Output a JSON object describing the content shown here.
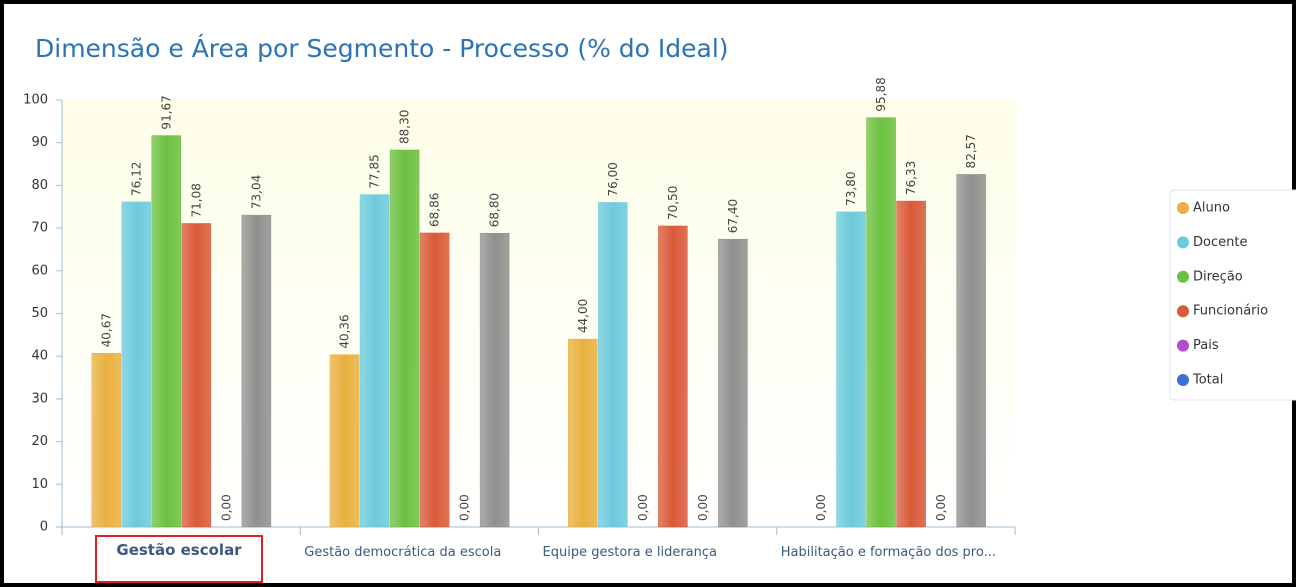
{
  "chart_data": {
    "type": "bar",
    "title": "Dimensão e Área por Segmento - Processo (% do Ideal)",
    "categories": [
      "Gestão escolar",
      "Gestão democrática da escola",
      "Equipe gestora e liderança",
      "Habilitação e formação dos pro..."
    ],
    "selected_category": 0,
    "series": [
      {
        "name": "Aluno",
        "color": "#e8b040",
        "legend_color": "#e8b040",
        "values": [
          40.67,
          40.36,
          44.0,
          0.0
        ],
        "value_labels": [
          "40,67",
          "40,36",
          "44,00",
          "0,00"
        ]
      },
      {
        "name": "Docente",
        "color": "#6ccadc",
        "legend_color": "#6ccadc",
        "values": [
          76.12,
          77.85,
          76.0,
          73.8
        ],
        "value_labels": [
          "76,12",
          "77,85",
          "76,00",
          "73,80"
        ]
      },
      {
        "name": "Direção",
        "color": "#6cc040",
        "legend_color": "#6cc040",
        "values": [
          91.67,
          88.3,
          0.0,
          95.88
        ],
        "value_labels": [
          "91,67",
          "88,30",
          "0,00",
          "95,88"
        ]
      },
      {
        "name": "Funcionário",
        "color": "#d85a38",
        "legend_color": "#d85a38",
        "values": [
          71.08,
          68.86,
          70.5,
          76.33
        ],
        "value_labels": [
          "71,08",
          "68,86",
          "70,50",
          "76,33"
        ]
      },
      {
        "name": "Pais",
        "color": "#b050c8",
        "legend_color": "#b050c8",
        "values": [
          0.0,
          0.0,
          0.0,
          0.0
        ],
        "value_labels": [
          "0,00",
          "0,00",
          "0,00",
          "0,00"
        ]
      },
      {
        "name": "Total",
        "color": "#909090",
        "legend_color": "#3a70d8",
        "values": [
          73.04,
          68.8,
          67.4,
          82.57
        ],
        "value_labels": [
          "73,04",
          "68,80",
          "67,40",
          "82,57"
        ]
      }
    ],
    "ylim": [
      0,
      100
    ],
    "yticks": [
      0,
      10,
      20,
      30,
      40,
      50,
      60,
      70,
      80,
      90,
      100
    ],
    "legend": "right"
  }
}
